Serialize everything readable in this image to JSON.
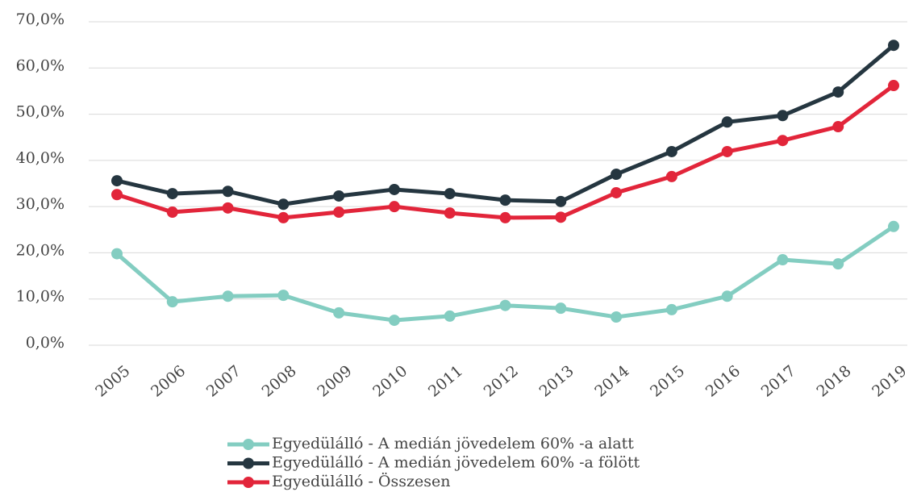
{
  "chart_data": {
    "type": "line",
    "categories": [
      "2005",
      "2006",
      "2007",
      "2008",
      "2009",
      "2010",
      "2011",
      "2012",
      "2013",
      "2014",
      "2015",
      "2016",
      "2017",
      "2018",
      "2019"
    ],
    "series": [
      {
        "name": "Egyedülálló - A medián jövedelem 60% -a alatt",
        "color": "#83cdc1",
        "values": [
          19.8,
          9.4,
          10.6,
          10.8,
          7.0,
          5.4,
          6.3,
          8.6,
          8.0,
          6.1,
          7.7,
          10.6,
          18.5,
          17.6,
          25.7
        ]
      },
      {
        "name": "Egyedülálló - A medián jövedelem 60% -a fölött",
        "color": "#253640",
        "values": [
          35.6,
          32.8,
          33.3,
          30.5,
          32.3,
          33.7,
          32.8,
          31.4,
          31.1,
          37.0,
          41.9,
          48.3,
          49.7,
          54.8,
          64.9
        ]
      },
      {
        "name": "Egyedülálló - Összesen",
        "color": "#e2253a",
        "values": [
          32.6,
          28.8,
          29.7,
          27.6,
          28.8,
          30.0,
          28.6,
          27.6,
          27.7,
          33.0,
          36.5,
          41.9,
          44.3,
          47.3,
          56.2
        ]
      }
    ],
    "ylim": [
      0,
      70
    ],
    "yticks": [
      {
        "value": 0,
        "label": "0,0%"
      },
      {
        "value": 10,
        "label": "10,0%"
      },
      {
        "value": 20,
        "label": "20,0%"
      },
      {
        "value": 30,
        "label": "30,0%"
      },
      {
        "value": 40,
        "label": "40,0%"
      },
      {
        "value": 50,
        "label": "50,0%"
      },
      {
        "value": 60,
        "label": "60,0%"
      },
      {
        "value": 70,
        "label": "70,0%"
      }
    ],
    "grid": true,
    "legend": "bottom"
  }
}
